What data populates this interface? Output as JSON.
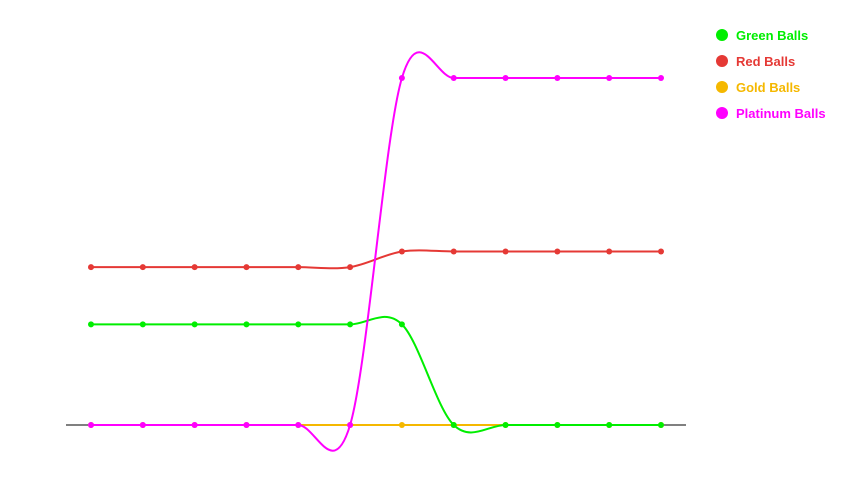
{
  "chart_data": {
    "type": "line",
    "title": "",
    "xlabel": "",
    "ylabel": "",
    "x": [
      1,
      2,
      3,
      4,
      5,
      6,
      7,
      8,
      9,
      10,
      11,
      12
    ],
    "ylim": [
      0,
      100
    ],
    "grid": false,
    "legend_position": "top-right",
    "series": [
      {
        "name": "Green Balls",
        "color": "#00ee00",
        "values": [
          29,
          29,
          29,
          29,
          29,
          29,
          29,
          0,
          0,
          0,
          0,
          0
        ]
      },
      {
        "name": "Red Balls",
        "color": "#e53935",
        "values": [
          45.5,
          45.5,
          45.5,
          45.5,
          45.5,
          45.5,
          50,
          50,
          50,
          50,
          50,
          50
        ]
      },
      {
        "name": "Gold Balls",
        "color": "#f5b800",
        "values": [
          0,
          0,
          0,
          0,
          0,
          0,
          0,
          0,
          0,
          0,
          0,
          0
        ]
      },
      {
        "name": "Platinum Balls",
        "color": "#ff00ff",
        "values": [
          0,
          0,
          0,
          0,
          0,
          0,
          100,
          100,
          100,
          100,
          100,
          100
        ]
      }
    ]
  }
}
